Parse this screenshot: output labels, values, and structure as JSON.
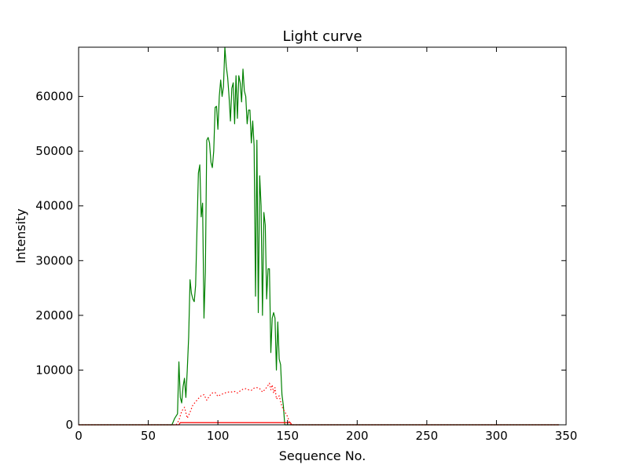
{
  "chart_data": {
    "type": "line",
    "title": "Light curve",
    "xlabel": "Sequence No.",
    "ylabel": "Intensity",
    "xlim": [
      0,
      350
    ],
    "ylim": [
      0,
      69000
    ],
    "xticks": [
      0,
      50,
      100,
      150,
      200,
      250,
      300,
      350
    ],
    "yticks": [
      0,
      10000,
      20000,
      30000,
      40000,
      50000,
      60000
    ],
    "grid": false,
    "legend": null,
    "series": [
      {
        "color": "#008000",
        "style": "solid",
        "x": [
          0,
          67,
          69,
          71,
          72,
          73,
          74,
          75,
          76,
          77,
          78,
          79,
          80,
          81,
          82,
          83,
          84,
          85,
          86,
          87,
          88,
          89,
          90,
          91,
          92,
          93,
          94,
          95,
          96,
          97,
          98,
          99,
          100,
          101,
          102,
          103,
          104,
          105,
          106,
          107,
          108,
          109,
          110,
          111,
          112,
          113,
          114,
          115,
          116,
          117,
          118,
          119,
          120,
          121,
          122,
          123,
          124,
          125,
          126,
          127,
          128,
          129,
          130,
          131,
          132,
          133,
          134,
          135,
          136,
          137,
          138,
          139,
          140,
          141,
          142,
          143,
          144,
          145,
          146,
          147,
          148,
          149,
          150,
          151,
          152,
          153,
          345
        ],
        "values": [
          0,
          0,
          1200,
          2000,
          11500,
          5000,
          4000,
          7000,
          8500,
          5000,
          10000,
          16000,
          26500,
          24000,
          23000,
          22500,
          25500,
          36000,
          46000,
          47500,
          38000,
          40500,
          19500,
          28000,
          52000,
          52500,
          51500,
          48000,
          47000,
          50000,
          58000,
          58200,
          54000,
          60000,
          63000,
          60000,
          61800,
          69000,
          65500,
          63500,
          60000,
          55500,
          61500,
          62500,
          55000,
          63800,
          56000,
          63800,
          62500,
          59000,
          65000,
          61000,
          60000,
          55000,
          57500,
          57500,
          51500,
          55500,
          51000,
          23500,
          52000,
          20500,
          45500,
          40000,
          20000,
          38800,
          36500,
          23000,
          28500,
          28500,
          13200,
          19500,
          20500,
          19500,
          10000,
          18800,
          12000,
          11000,
          5500,
          3500,
          0,
          0,
          0,
          0,
          0,
          0,
          0
        ]
      },
      {
        "color": "#ff0000",
        "style": "dotted",
        "x": [
          0,
          70,
          72,
          74,
          76,
          78,
          80,
          82,
          84,
          86,
          88,
          90,
          92,
          94,
          96,
          98,
          100,
          102,
          104,
          106,
          108,
          110,
          112,
          114,
          116,
          118,
          120,
          122,
          124,
          126,
          128,
          130,
          132,
          134,
          136,
          137,
          138,
          139,
          140,
          141,
          142,
          144,
          146,
          148,
          150,
          152,
          345
        ],
        "values": [
          0,
          0,
          800,
          2500,
          3200,
          1200,
          2300,
          3600,
          4200,
          4800,
          5300,
          5500,
          4500,
          5300,
          5800,
          5900,
          5200,
          5500,
          5700,
          5900,
          6000,
          6000,
          6100,
          5800,
          6200,
          6500,
          6600,
          6400,
          6300,
          6700,
          6800,
          6600,
          6000,
          6500,
          7200,
          7600,
          6400,
          7300,
          5800,
          6800,
          4700,
          5300,
          3300,
          2400,
          1500,
          0,
          0
        ]
      },
      {
        "color": "#ff0000",
        "style": "solid",
        "x": [
          0,
          70,
          72,
          73,
          151,
          152,
          153,
          345
        ],
        "values": [
          0,
          0,
          0,
          400,
          400,
          400,
          0,
          0
        ]
      }
    ]
  }
}
